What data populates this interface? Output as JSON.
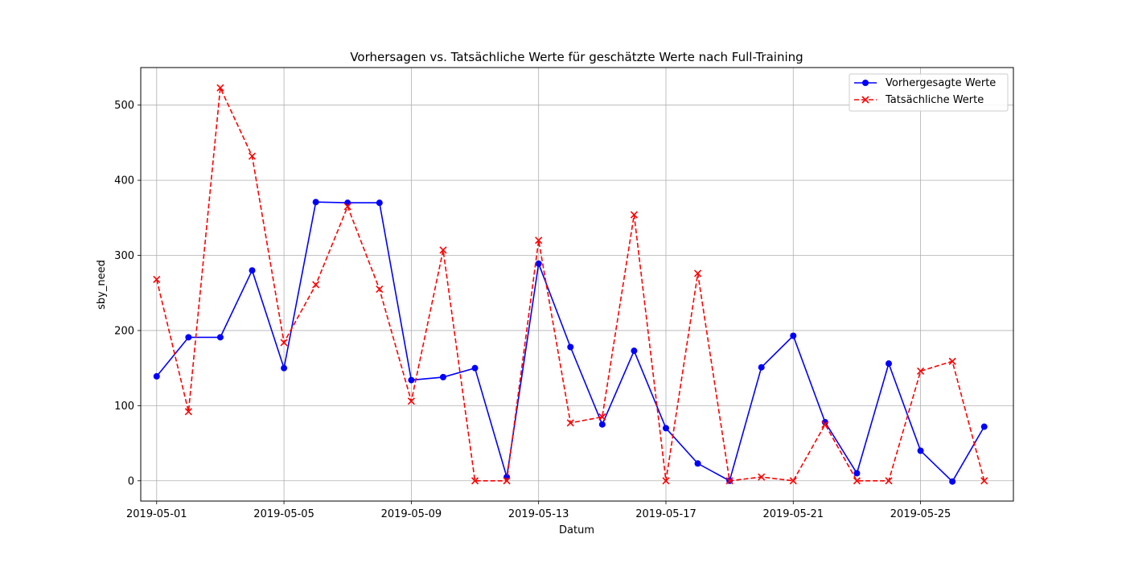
{
  "chart_data": {
    "type": "line",
    "title": "Vorhersagen vs. Tatsächliche Werte für geschätzte Werte nach Full-Training",
    "xlabel": "Datum",
    "ylabel": "sby_need",
    "x": [
      "2019-05-01",
      "2019-05-02",
      "2019-05-03",
      "2019-05-04",
      "2019-05-05",
      "2019-05-06",
      "2019-05-07",
      "2019-05-08",
      "2019-05-09",
      "2019-05-10",
      "2019-05-11",
      "2019-05-12",
      "2019-05-13",
      "2019-05-14",
      "2019-05-15",
      "2019-05-16",
      "2019-05-17",
      "2019-05-18",
      "2019-05-19",
      "2019-05-20",
      "2019-05-21",
      "2019-05-22",
      "2019-05-23",
      "2019-05-24",
      "2019-05-25",
      "2019-05-26",
      "2019-05-27"
    ],
    "x_ticks": [
      "2019-05-01",
      "2019-05-05",
      "2019-05-09",
      "2019-05-13",
      "2019-05-17",
      "2019-05-21",
      "2019-05-25"
    ],
    "y_ticks": [
      0,
      100,
      200,
      300,
      400,
      500
    ],
    "xlim": [
      "2019-04-30T12:00",
      "2019-05-27T22:00"
    ],
    "ylim": [
      -27,
      550
    ],
    "grid": true,
    "legend_position": "top-right",
    "series": [
      {
        "name": "Vorhergesagte Werte",
        "color": "#0000ff",
        "line_style": "solid",
        "marker": "circle",
        "values": [
          139,
          191,
          191,
          280,
          150,
          371,
          370,
          370,
          134,
          138,
          150,
          5,
          289,
          178,
          75,
          173,
          70,
          23,
          0,
          151,
          193,
          78,
          10,
          156,
          40,
          -1,
          72
        ]
      },
      {
        "name": "Tatsächliche Werte",
        "color": "#ff0000",
        "line_style": "dashed",
        "marker": "x",
        "values": [
          268,
          92,
          523,
          432,
          184,
          261,
          365,
          255,
          106,
          307,
          0,
          0,
          320,
          77,
          85,
          354,
          0,
          276,
          0,
          5,
          0,
          75,
          0,
          0,
          146,
          159,
          0
        ]
      }
    ]
  }
}
